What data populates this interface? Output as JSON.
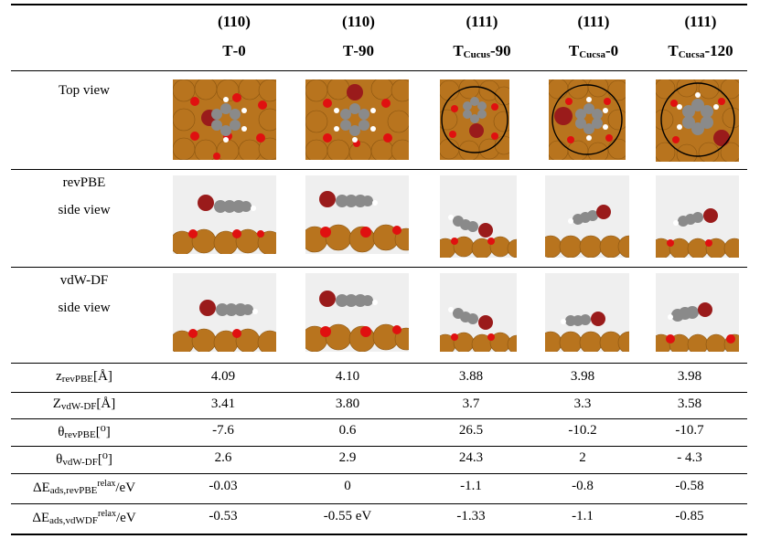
{
  "columns": [
    {
      "miller": "(110)",
      "conf_main": "T",
      "conf_sub": "",
      "conf_tail": "-0"
    },
    {
      "miller": "(110)",
      "conf_main": "T",
      "conf_sub": "",
      "conf_tail": "-90"
    },
    {
      "miller": "(111)",
      "conf_main": "T",
      "conf_sub": "Cucus",
      "conf_tail": "-90"
    },
    {
      "miller": "(111)",
      "conf_main": "T",
      "conf_sub": "Cucsa",
      "conf_tail": "-0"
    },
    {
      "miller": "(111)",
      "conf_main": "T",
      "conf_sub": "Cucsa",
      "conf_tail": "-120"
    }
  ],
  "image_rows": {
    "top": "Top view",
    "revpbe_1": "revPBE",
    "revpbe_2": "side view",
    "vdw_1": "vdW-DF",
    "vdw_2": "side view"
  },
  "rows": [
    {
      "label_main": "z",
      "label_sub": "revPBE",
      "label_tail": "[Å]",
      "values": [
        "4.09",
        "4.10",
        "3.88",
        "3.98",
        "3.98"
      ]
    },
    {
      "label_main": "Z",
      "label_sub": "vdW-DF",
      "label_tail": "[Å]",
      "values": [
        "3.41",
        "3.80",
        "3.7",
        "3.3",
        "3.58"
      ]
    },
    {
      "label_main": "θ",
      "label_sub": "revPBE",
      "label_tail": "[⁰]",
      "values": [
        "-7.6",
        "0.6",
        "26.5",
        "-10.2",
        "-10.7"
      ]
    },
    {
      "label_main": "θ",
      "label_sub": "vdW-DF",
      "label_tail": "[⁰]",
      "values": [
        "2.6",
        "2.9",
        "24.3",
        "2",
        "- 4.3"
      ]
    },
    {
      "label_main": "ΔE",
      "label_sub": "ads,revPBE",
      "label_sup": "relax",
      "label_tail": "/eV",
      "values": [
        "-0.03",
        "0",
        "-1.1",
        "-0.8",
        "-0.58"
      ]
    },
    {
      "label_main": "ΔE",
      "label_sub": "ads,vdWDF",
      "label_sup": "relax",
      "label_tail": "/eV",
      "values": [
        "-0.53",
        "-0.55 eV",
        "-1.33",
        "-1.1",
        "-0.85"
      ]
    }
  ]
}
